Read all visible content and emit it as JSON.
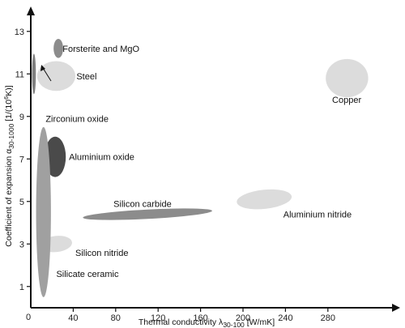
{
  "chart_data": {
    "type": "scatter",
    "title": "",
    "xlabel_main": "Thermal conductivity λ",
    "xlabel_sub": "30-100",
    "xlabel_unit": " [W/mK]",
    "ylabel_prefix": "Coefficient of expansion α",
    "ylabel_sub": "30-1000",
    "ylabel_unit": " [1/(10",
    "ylabel_sup": "6",
    "ylabel_end": "K)]",
    "xlim": [
      0,
      320
    ],
    "ylim": [
      0,
      13.5
    ],
    "x_ticks": [
      40,
      80,
      120,
      160,
      200,
      240,
      280
    ],
    "y_ticks": [
      1,
      3,
      5,
      7,
      9,
      11,
      13
    ],
    "regions": [
      {
        "name": "Forsterite and MgO",
        "x": 26,
        "y": 12.2,
        "rx": 4.5,
        "ry": 0.45,
        "angle": 0,
        "color": "#8c8c8c",
        "label_x": 30,
        "label_y": 12.2
      },
      {
        "name": "Steel",
        "x": 24,
        "y": 10.9,
        "rx": 18,
        "ry": 0.7,
        "angle": 0,
        "color": "#dcdcdc",
        "label_x": 43,
        "label_y": 10.9
      },
      {
        "name": "Zirconium oxide",
        "x": 3,
        "y": 11.0,
        "rx": 1.8,
        "ry": 0.95,
        "angle": 0,
        "color": "#808080",
        "label_x": 14,
        "label_y": 8.9
      },
      {
        "name": "Copper",
        "x": 298,
        "y": 10.8,
        "rx": 20,
        "ry": 0.9,
        "angle": 0,
        "color": "#dcdcdc",
        "label_x": 284,
        "label_y": 9.8
      },
      {
        "name": "Aluminium oxide",
        "x": 23,
        "y": 7.1,
        "rx": 10,
        "ry": 0.95,
        "angle": 0,
        "color": "#4a4a4a",
        "label_x": 36,
        "label_y": 7.1
      },
      {
        "name": "Silicon carbide",
        "x": 110,
        "y": 4.4,
        "rx": 61,
        "ry": 0.22,
        "angle": -3,
        "color": "#8c8c8c",
        "label_x": 78,
        "label_y": 4.9
      },
      {
        "name": "Aluminium nitride",
        "x": 220,
        "y": 5.1,
        "rx": 26,
        "ry": 0.45,
        "angle": -6,
        "color": "#dcdcdc",
        "label_x": 238,
        "label_y": 4.4
      },
      {
        "name": "Silicon nitride",
        "x": 24,
        "y": 3.0,
        "rx": 15,
        "ry": 0.38,
        "angle": -6,
        "color": "#dcdcdc",
        "label_x": 42,
        "label_y": 2.6
      },
      {
        "name": "Silicate ceramic",
        "x": 12,
        "y": 4.5,
        "rx": 7,
        "ry": 4.0,
        "angle": 0,
        "color": "#a0a0a0",
        "label_x": 24,
        "label_y": 1.6
      }
    ]
  }
}
